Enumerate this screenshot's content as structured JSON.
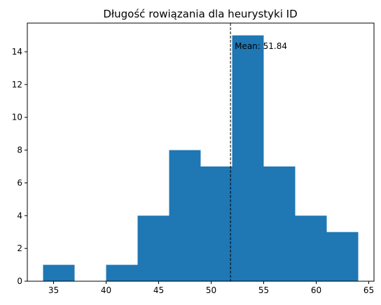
{
  "chart_data": {
    "type": "bar",
    "title": "Długość rowiązania dla heurystyki ID",
    "xlabel": "",
    "ylabel": "",
    "bins": [
      {
        "x0": 34,
        "x1": 37,
        "count": 1
      },
      {
        "x0": 37,
        "x1": 40,
        "count": 0
      },
      {
        "x0": 40,
        "x1": 43,
        "count": 1
      },
      {
        "x0": 43,
        "x1": 46,
        "count": 4
      },
      {
        "x0": 46,
        "x1": 49,
        "count": 8
      },
      {
        "x0": 49,
        "x1": 52,
        "count": 7
      },
      {
        "x0": 52,
        "x1": 55,
        "count": 15
      },
      {
        "x0": 55,
        "x1": 58,
        "count": 7
      },
      {
        "x0": 58,
        "x1": 61,
        "count": 4
      },
      {
        "x0": 61,
        "x1": 64,
        "count": 3
      }
    ],
    "xlim": [
      32.5,
      65.5
    ],
    "ylim": [
      0,
      15.75
    ],
    "xticks": [
      35,
      40,
      45,
      50,
      55,
      60,
      65
    ],
    "yticks": [
      0,
      2,
      4,
      6,
      8,
      10,
      12,
      14
    ],
    "mean": 51.84,
    "mean_label": "Mean: 51.84",
    "bar_color": "#1f77b4",
    "grid": false
  }
}
